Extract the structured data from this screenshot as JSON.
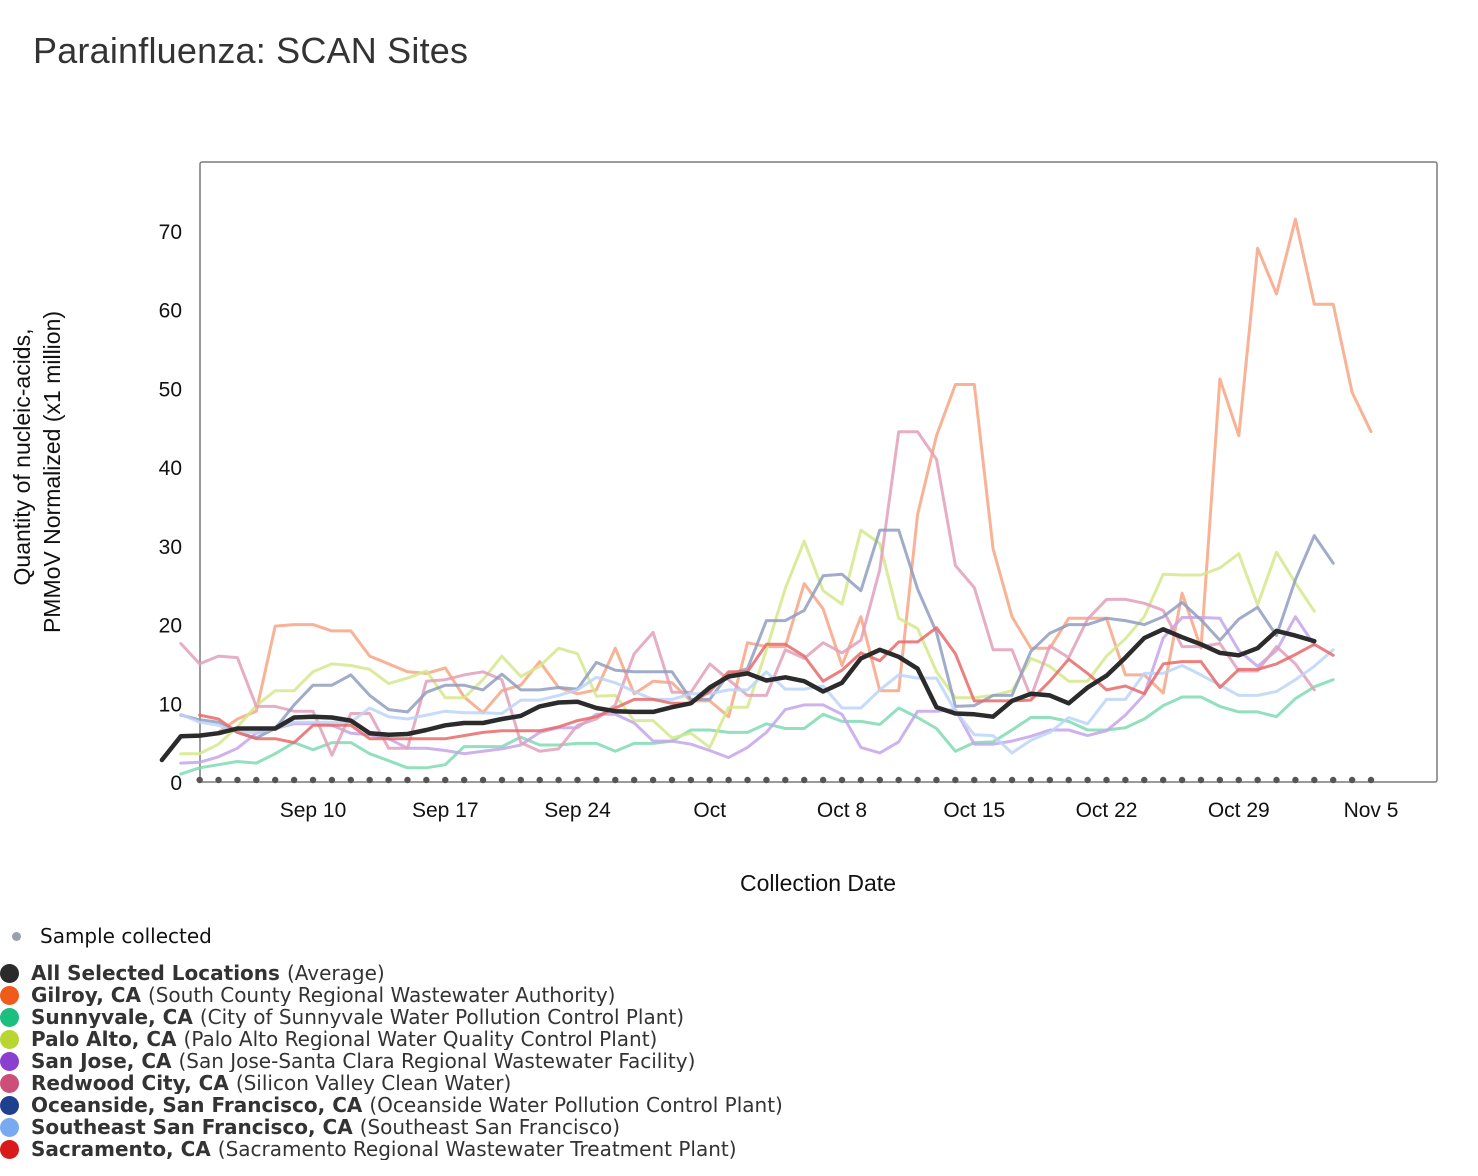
{
  "title": "Parainfluenza: SCAN Sites",
  "legend": {
    "sample_label": "Sample collected",
    "items": [
      {
        "location": "All Selected Locations",
        "plant": "(Average)",
        "color": "#2b2b2b"
      },
      {
        "location": "Gilroy, CA",
        "plant": "(South County Regional Wastewater Authority)",
        "color": "#f05a1a"
      },
      {
        "location": "Sunnyvale, CA",
        "plant": "(City of Sunnyvale Water Pollution Control Plant)",
        "color": "#1cbf7f"
      },
      {
        "location": "Palo Alto, CA",
        "plant": "(Palo Alto Regional Water Quality Control Plant)",
        "color": "#b9d531"
      },
      {
        "location": "San Jose, CA",
        "plant": "(San Jose-Santa Clara Regional Wastewater Facility)",
        "color": "#8a3fcf"
      },
      {
        "location": "Redwood City, CA",
        "plant": "(Silicon Valley Clean Water)",
        "color": "#cc4f7a"
      },
      {
        "location": "Oceanside, San Francisco, CA",
        "plant": "(Oceanside Water Pollution Control Plant)",
        "color": "#1f3f8f"
      },
      {
        "location": "Southeast San Francisco, CA",
        "plant": "(Southeast San Francisco)",
        "color": "#77aaf0"
      },
      {
        "location": "Sacramento, CA",
        "plant": "(Sacramento Regional Wastewater Treatment Plant)",
        "color": "#d81a1a"
      }
    ]
  },
  "chart_data": {
    "type": "line",
    "title": "Parainfluenza: SCAN Sites",
    "xlabel": "Collection Date",
    "ylabel": "Quantity of nucleic-acids, PMMoV Normalized (x1 million)",
    "ylim": [
      0,
      78
    ],
    "yticks": [
      0,
      10,
      20,
      30,
      40,
      50,
      60,
      70
    ],
    "x_start": "Sep 2",
    "x_end": "Nov 9",
    "xtick_labels": [
      "Sep 10",
      "Sep 17",
      "Sep 24",
      "Oct",
      "Oct 8",
      "Oct 15",
      "Oct 22",
      "Oct 29",
      "Nov 5"
    ],
    "legend_position": "below",
    "grid": false,
    "sample_markers": "daily from Sep 4 to Nov 5",
    "series": [
      {
        "name": "Gilroy, CA",
        "color": "#f7a483",
        "x_start": "Sep 5",
        "values": [
          6.3,
          8.0,
          9.0,
          19.8,
          20.0,
          20.0,
          19.2,
          19.2,
          16.0,
          15.0,
          14.0,
          13.8,
          14.5,
          10.8,
          8.8,
          11.6,
          12.3,
          15.3,
          12.0,
          11.2,
          11.7,
          17.0,
          11.2,
          12.8,
          12.6,
          10.3,
          10.3,
          8.3,
          17.7,
          17.2,
          17.2,
          25.2,
          22.0,
          14.8,
          21.0,
          11.6,
          11.6,
          34.0,
          44.0,
          50.5,
          50.5,
          29.6,
          21.0,
          17.0,
          17.0,
          20.8,
          20.8,
          20.8,
          13.6,
          13.6,
          11.3,
          24.0,
          17.0,
          51.2,
          44.0,
          67.8,
          62.0,
          71.5,
          60.7,
          60.7,
          49.5,
          44.5
        ]
      },
      {
        "name": "Sunnyvale, CA",
        "color": "#7fdbb1",
        "x_start": "Sep 3",
        "values": [
          1.0,
          1.8,
          2.2,
          2.6,
          2.4,
          3.6,
          5.0,
          4.1,
          5.0,
          5.0,
          3.6,
          2.7,
          1.8,
          1.8,
          2.2,
          4.5,
          4.5,
          4.5,
          5.7,
          4.7,
          4.7,
          4.9,
          4.9,
          3.9,
          4.9,
          4.9,
          5.2,
          6.6,
          6.6,
          6.3,
          6.3,
          7.4,
          6.8,
          6.8,
          8.6,
          7.7,
          7.7,
          7.3,
          9.4,
          8.2,
          6.8,
          3.9,
          5.0,
          5.1,
          6.6,
          8.2,
          8.2,
          7.7,
          6.6,
          6.6,
          6.9,
          8.0,
          9.7,
          10.8,
          10.8,
          9.6,
          8.9,
          8.9,
          8.3,
          10.6,
          12.1,
          13.0
        ]
      },
      {
        "name": "Palo Alto, CA",
        "color": "#d5e88b",
        "x_start": "Sep 3",
        "values": [
          3.6,
          3.6,
          4.8,
          7.0,
          9.7,
          11.6,
          11.6,
          14.0,
          15.0,
          14.8,
          14.3,
          12.5,
          13.2,
          14.1,
          10.7,
          10.7,
          13.0,
          16.0,
          13.4,
          14.7,
          17.0,
          16.3,
          10.9,
          11.0,
          7.8,
          7.8,
          5.6,
          6.2,
          4.4,
          9.5,
          9.5,
          16.8,
          24.6,
          30.6,
          24.3,
          22.6,
          32.0,
          30.3,
          20.8,
          19.5,
          14.0,
          10.7,
          10.7,
          11.0,
          11.6,
          15.7,
          14.7,
          12.8,
          12.8,
          16.0,
          18.2,
          21.0,
          26.4,
          26.3,
          26.3,
          27.2,
          29.0,
          22.5,
          29.2,
          25.3,
          21.7
        ]
      },
      {
        "name": "San Jose, CA",
        "color": "#c6a5ea",
        "x_start": "Sep 3",
        "values": [
          2.4,
          2.5,
          3.2,
          4.3,
          6.2,
          6.8,
          7.4,
          7.4,
          7.2,
          6.2,
          6.0,
          5.5,
          4.3,
          4.3,
          4.0,
          3.6,
          3.9,
          4.2,
          4.7,
          6.3,
          6.9,
          6.9,
          8.6,
          8.6,
          7.5,
          5.2,
          5.2,
          4.8,
          4.0,
          3.1,
          4.4,
          6.3,
          9.2,
          9.8,
          9.8,
          8.6,
          4.4,
          3.7,
          5.1,
          9.0,
          9.0,
          9.2,
          4.8,
          4.8,
          5.2,
          5.8,
          6.6,
          6.6,
          5.9,
          6.5,
          8.5,
          11.1,
          18.3,
          20.9,
          20.9,
          20.8,
          16.7,
          14.7,
          16.7,
          21.0,
          17.4
        ]
      },
      {
        "name": "Redwood City, CA",
        "color": "#e2a0bb",
        "x_start": "Sep 3",
        "values": [
          17.6,
          15.0,
          16.0,
          15.8,
          9.6,
          9.6,
          9.0,
          9.0,
          3.4,
          8.7,
          8.7,
          4.3,
          4.3,
          12.8,
          13.0,
          13.6,
          14.0,
          13.0,
          5.0,
          3.9,
          4.2,
          7.2,
          8.0,
          9.8,
          16.3,
          19.0,
          11.4,
          11.4,
          15.0,
          13.0,
          11.0,
          11.0,
          16.8,
          15.7,
          17.7,
          16.4,
          18.0,
          27.0,
          44.5,
          44.5,
          41.0,
          27.5,
          24.7,
          16.8,
          16.8,
          10.8,
          17.3,
          15.8,
          20.7,
          23.2,
          23.2,
          22.7,
          21.8,
          17.2,
          17.2,
          17.6,
          14.1,
          14.1,
          17.2,
          15.0,
          11.7
        ]
      },
      {
        "name": "Oceanside, San Francisco, CA",
        "color": "#8f9dbf",
        "x_start": "Sep 3",
        "values": [
          8.5,
          7.9,
          7.6,
          6.3,
          5.6,
          6.8,
          9.8,
          12.3,
          12.3,
          13.6,
          11.0,
          9.2,
          8.9,
          11.4,
          12.3,
          12.3,
          11.7,
          13.7,
          11.7,
          11.7,
          12.0,
          11.8,
          15.2,
          14.2,
          14.0,
          14.0,
          14.0,
          10.5,
          10.5,
          13.7,
          14.4,
          20.5,
          20.5,
          21.8,
          26.2,
          26.4,
          24.3,
          32.0,
          32.0,
          24.5,
          19.0,
          9.6,
          9.7,
          11.0,
          11.0,
          16.6,
          18.9,
          20.0,
          20.0,
          20.8,
          20.5,
          20.0,
          21.0,
          22.8,
          20.6,
          18.0,
          20.7,
          22.2,
          18.6,
          25.7,
          31.3,
          27.8
        ]
      },
      {
        "name": "Southeast San Francisco, CA",
        "color": "#bcd4f8",
        "x_start": "Sep 3",
        "values": [
          8.6,
          7.6,
          7.2,
          6.3,
          6.3,
          6.8,
          7.6,
          7.6,
          7.6,
          7.6,
          9.4,
          8.3,
          8.0,
          8.5,
          9.0,
          8.8,
          8.8,
          8.7,
          10.4,
          10.4,
          11.0,
          11.7,
          13.3,
          12.6,
          11.5,
          10.5,
          10.5,
          11.2,
          11.2,
          11.7,
          11.7,
          14.0,
          11.8,
          11.8,
          12.2,
          9.4,
          9.4,
          11.7,
          13.6,
          13.2,
          13.2,
          9.0,
          6.0,
          5.9,
          3.7,
          5.3,
          6.3,
          8.2,
          7.4,
          10.5,
          10.5,
          13.8,
          13.8,
          14.8,
          13.6,
          12.3,
          11.0,
          11.0,
          11.5,
          13.0,
          14.7,
          16.8
        ]
      },
      {
        "name": "Sacramento, CA",
        "color": "#e86a6a",
        "x_start": "Sep 4",
        "values": [
          8.5,
          8.0,
          6.3,
          5.5,
          5.5,
          5.0,
          7.2,
          7.2,
          7.2,
          5.5,
          5.5,
          5.5,
          5.5,
          5.5,
          5.9,
          6.3,
          6.5,
          6.5,
          6.5,
          7.0,
          7.8,
          8.3,
          9.4,
          10.5,
          10.5,
          10.0,
          10.0,
          11.5,
          14.0,
          14.0,
          17.5,
          17.5,
          16.0,
          12.8,
          14.2,
          16.4,
          15.4,
          17.8,
          17.8,
          19.6,
          16.3,
          10.3,
          10.3,
          10.3,
          10.4,
          12.8,
          15.6,
          13.8,
          11.7,
          12.2,
          11.2,
          15.0,
          15.3,
          15.3,
          12.0,
          14.3,
          14.3,
          15.0,
          16.2,
          17.5,
          16.1
        ]
      },
      {
        "name": "All Selected Locations",
        "color": "#2b2b2b",
        "x_start": "Sep 2",
        "values": [
          2.8,
          5.8,
          5.9,
          6.2,
          6.8,
          6.8,
          6.8,
          8.2,
          8.3,
          8.2,
          7.8,
          6.2,
          6.0,
          6.1,
          6.6,
          7.2,
          7.5,
          7.5,
          8.0,
          8.4,
          9.6,
          10.1,
          10.2,
          9.4,
          9.0,
          8.9,
          8.9,
          9.5,
          10.0,
          12.0,
          13.4,
          13.8,
          12.9,
          13.3,
          12.8,
          11.5,
          12.6,
          15.7,
          16.8,
          15.9,
          14.4,
          9.5,
          8.7,
          8.6,
          8.3,
          10.3,
          11.2,
          11.0,
          10.0,
          12.0,
          13.5,
          15.8,
          18.3,
          19.4,
          18.4,
          17.5,
          16.4,
          16.1,
          17.0,
          19.2,
          18.6,
          17.9
        ]
      }
    ]
  }
}
